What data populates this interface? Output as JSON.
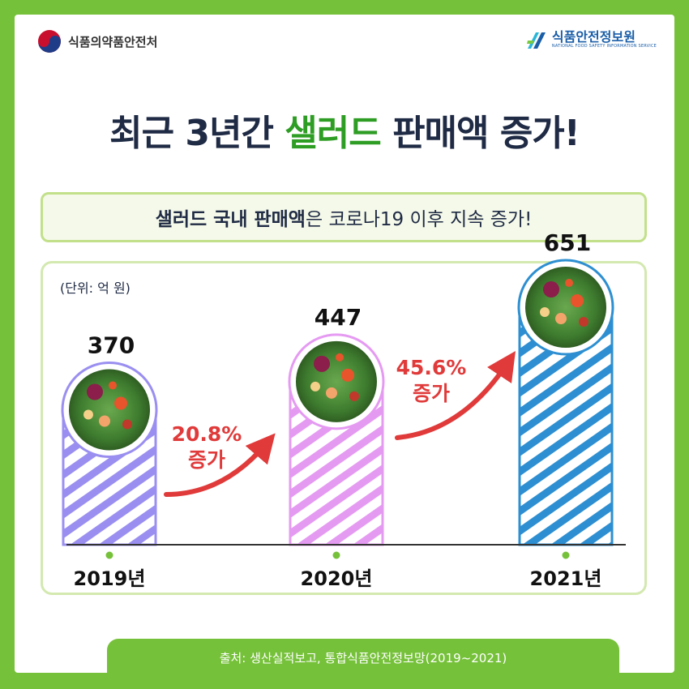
{
  "header": {
    "left_logo_text": "식품의약품안전처",
    "right_logo_text": "식품안전정보원",
    "right_logo_sub": "NATIONAL FOOD SAFETY INFORMATION SERVICE"
  },
  "title": {
    "part1": "최근 3년간 ",
    "highlight": "샐러드",
    "part2": " 판매액 증가!"
  },
  "subtitle": {
    "bold": "샐러드 국내 판매액",
    "rest": "은 코로나19 이후 지속 증가!"
  },
  "footer": {
    "source": "출처: 생산실적보고, 통합식품안전정보망(2019~2021)"
  },
  "colors": {
    "brand_green": "#76c13a",
    "title_highlight": "#2e9d24",
    "arrow_red": "#e03a3a",
    "bar_2019": "#9a8ff0",
    "bar_2020": "#e59af2",
    "bar_2021": "#2d8fd1"
  },
  "chart_data": {
    "type": "bar",
    "unit_label": "(단위: 억 원)",
    "categories": [
      "2019년",
      "2020년",
      "2021년"
    ],
    "values": [
      370,
      447,
      651
    ],
    "value_labels": [
      "370",
      "447",
      "651"
    ],
    "growth": [
      {
        "pct": "20.8%",
        "word": "증가"
      },
      {
        "pct": "45.6%",
        "word": "증가"
      }
    ],
    "bar_colors": [
      "#9a8ff0",
      "#e59af2",
      "#2d8fd1"
    ]
  }
}
